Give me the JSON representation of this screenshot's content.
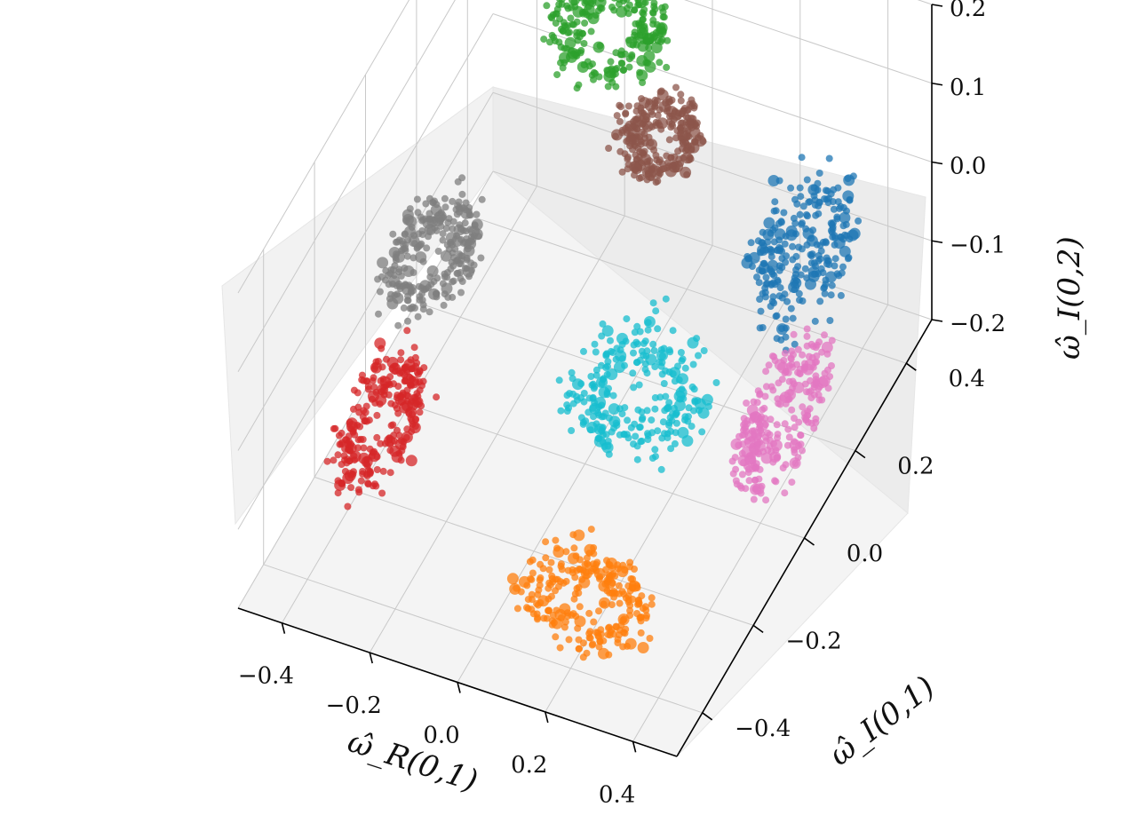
{
  "chart_data": {
    "type": "scatter",
    "projection": "3d",
    "axes": {
      "x": {
        "label": "ω̂_R(0,1)",
        "ticks": [
          -0.4,
          -0.2,
          0.0,
          0.2,
          0.4
        ],
        "tick_labels": [
          "−0.4",
          "−0.2",
          "0.0",
          "0.2",
          "0.4"
        ],
        "range": [
          -0.5,
          0.5
        ]
      },
      "y": {
        "label": "ω̂_I(0,1)",
        "ticks": [
          -0.4,
          -0.2,
          0.0,
          0.2,
          0.4
        ],
        "tick_labels": [
          "−0.4",
          "−0.2",
          "0.0",
          "0.2",
          "0.4"
        ],
        "range": [
          -0.5,
          0.5
        ]
      },
      "z": {
        "label": "ω̂_I(0,2)",
        "ticks": [
          -0.2,
          -0.1,
          0.0,
          0.1,
          0.2
        ],
        "tick_labels": [
          "−0.2",
          "−0.1",
          "0.0",
          "0.1",
          "0.2"
        ],
        "range": [
          -0.2,
          0.2
        ]
      }
    },
    "grid": true,
    "legend": "none",
    "series": [
      {
        "color": "#1f77b4",
        "center": [
          0.35,
          0.25,
          0.0
        ],
        "spread": [
          0.09,
          0.12,
          0.09
        ]
      },
      {
        "color": "#ff7f0e",
        "center": [
          0.2,
          -0.35,
          -0.14
        ],
        "spread": [
          0.14,
          0.08,
          0.05
        ]
      },
      {
        "color": "#2ca02c",
        "center": [
          -0.15,
          0.35,
          0.13
        ],
        "spread": [
          0.12,
          0.1,
          0.04
        ]
      },
      {
        "color": "#d62728",
        "center": [
          -0.35,
          -0.2,
          -0.1
        ],
        "spread": [
          0.07,
          0.14,
          0.06
        ]
      },
      {
        "color": "#8c564b",
        "center": [
          0.0,
          0.3,
          0.05
        ],
        "spread": [
          0.08,
          0.08,
          0.04
        ]
      },
      {
        "color": "#e377c2",
        "center": [
          0.45,
          0.0,
          -0.05
        ],
        "spread": [
          0.06,
          0.15,
          0.07
        ]
      },
      {
        "color": "#7f7f7f",
        "center": [
          -0.35,
          0.0,
          0.0
        ],
        "spread": [
          0.08,
          0.12,
          0.05
        ]
      },
      {
        "color": "#17becf",
        "center": [
          0.15,
          -0.05,
          -0.05
        ],
        "spread": [
          0.14,
          0.12,
          0.06
        ]
      }
    ]
  }
}
